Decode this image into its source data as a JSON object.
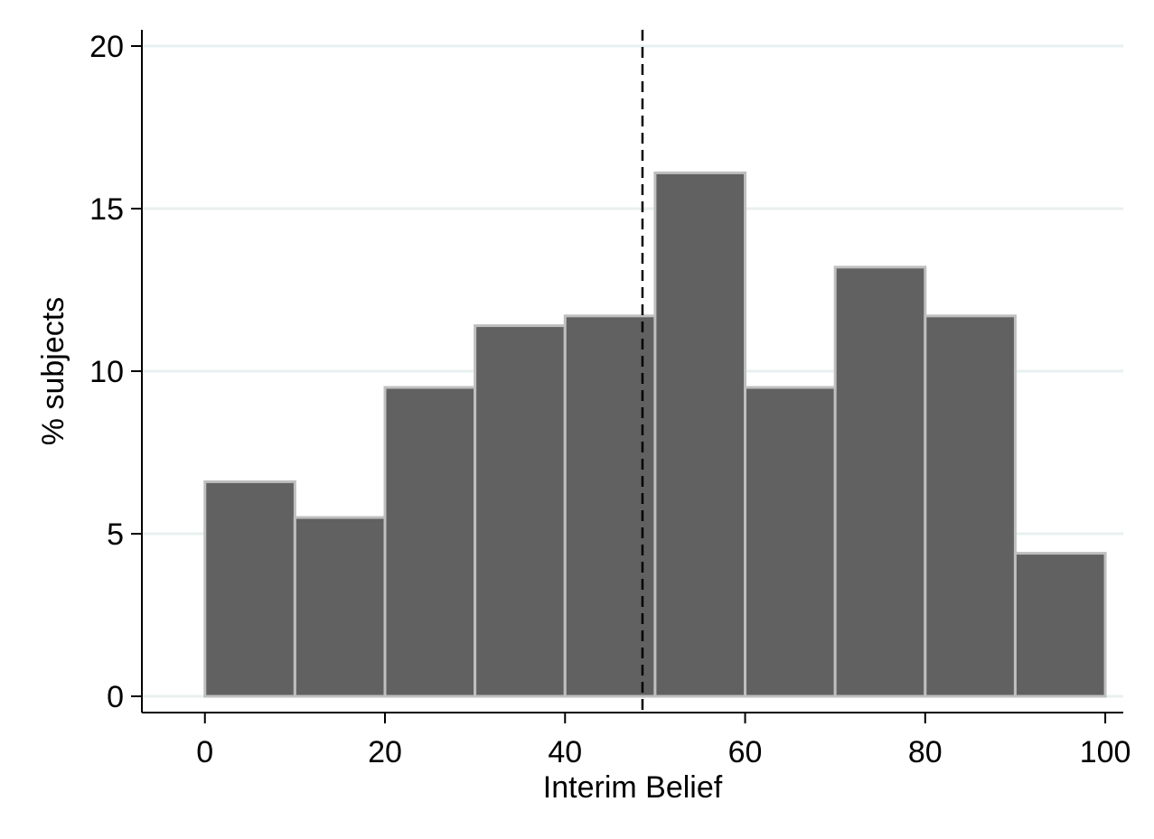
{
  "chart_data": {
    "type": "bar",
    "subtype": "histogram",
    "bin_edges": [
      0,
      10,
      20,
      30,
      40,
      50,
      60,
      70,
      80,
      90,
      100
    ],
    "values": [
      6.6,
      5.5,
      9.5,
      11.4,
      11.7,
      16.1,
      9.5,
      13.2,
      11.7,
      4.4
    ],
    "xlabel": "Interim Belief",
    "ylabel": "% subjects",
    "xlim": [
      -7,
      102
    ],
    "ylim": [
      -0.5,
      20.5
    ],
    "xticks": [
      0,
      20,
      40,
      60,
      80,
      100
    ],
    "xtick_labels": [
      "0",
      "20",
      "40",
      "60",
      "80",
      "100"
    ],
    "yticks": [
      0,
      5,
      10,
      15,
      20
    ],
    "ytick_labels": [
      "0",
      "5",
      "10",
      "15",
      "20"
    ],
    "reference_line": {
      "x": 48.6,
      "style": "dashed",
      "color": "#000000"
    },
    "grid": {
      "y": true,
      "x": false
    },
    "colors": {
      "bar_fill": "#616161",
      "bar_edge": "#bfbfbf",
      "grid": "#e8f0f0",
      "axis": "#000000"
    }
  }
}
